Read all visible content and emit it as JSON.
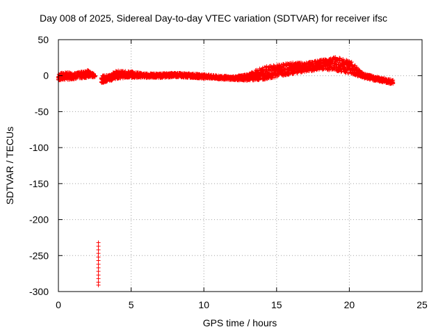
{
  "chart_data": {
    "type": "scatter",
    "title": "Day 008 of 2025, Sidereal Day-to-day VTEC variation (SDTVAR) for receiver ifsc",
    "xlabel": "GPS time / hours",
    "ylabel": "SDTVAR / TECUs",
    "xlim": [
      0,
      25
    ],
    "ylim": [
      -300,
      50
    ],
    "xticks": [
      0,
      5,
      10,
      15,
      20,
      25
    ],
    "yticks": [
      -300,
      -250,
      -200,
      -150,
      -100,
      -50,
      0,
      50
    ],
    "grid": true,
    "marker": "+",
    "color": "#ff0000",
    "series": [
      {
        "band_min": [
          [
            0.0,
            -7
          ],
          [
            0.5,
            -6
          ],
          [
            1.0,
            -5
          ],
          [
            1.5,
            -4
          ],
          [
            2.0,
            -3
          ],
          [
            2.5,
            -2
          ],
          [
            3.0,
            -10
          ],
          [
            3.5,
            -8
          ],
          [
            4.0,
            -4
          ],
          [
            5.0,
            -3
          ],
          [
            6.0,
            -3
          ],
          [
            7.0,
            -3
          ],
          [
            8.0,
            -2
          ],
          [
            9.0,
            -3
          ],
          [
            10.0,
            -4
          ],
          [
            11.0,
            -5
          ],
          [
            12.0,
            -6
          ],
          [
            13.0,
            -7
          ],
          [
            14.0,
            -6
          ],
          [
            15.0,
            -2
          ],
          [
            16.0,
            2
          ],
          [
            17.0,
            5
          ],
          [
            18.0,
            8
          ],
          [
            19.0,
            7
          ],
          [
            20.0,
            3
          ],
          [
            21.0,
            -4
          ],
          [
            22.0,
            -8
          ],
          [
            23.0,
            -12
          ]
        ],
        "band_max": [
          [
            0.0,
            3
          ],
          [
            0.5,
            5
          ],
          [
            1.0,
            4
          ],
          [
            1.5,
            5
          ],
          [
            2.0,
            8
          ],
          [
            2.5,
            2
          ],
          [
            3.0,
            0
          ],
          [
            3.5,
            2
          ],
          [
            4.0,
            7
          ],
          [
            5.0,
            6
          ],
          [
            6.0,
            3
          ],
          [
            7.0,
            3
          ],
          [
            8.0,
            4
          ],
          [
            9.0,
            3
          ],
          [
            10.0,
            2
          ],
          [
            11.0,
            0
          ],
          [
            12.0,
            -1
          ],
          [
            13.0,
            2
          ],
          [
            14.0,
            12
          ],
          [
            15.0,
            15
          ],
          [
            16.0,
            18
          ],
          [
            17.0,
            18
          ],
          [
            18.0,
            22
          ],
          [
            19.0,
            26
          ],
          [
            20.0,
            22
          ],
          [
            21.0,
            3
          ],
          [
            22.0,
            -2
          ],
          [
            23.0,
            -6
          ]
        ],
        "outliers": [
          [
            2.75,
            -232
          ],
          [
            2.75,
            -237
          ],
          [
            2.75,
            -242
          ],
          [
            2.75,
            -247
          ],
          [
            2.75,
            -252
          ],
          [
            2.75,
            -257
          ],
          [
            2.75,
            -262
          ],
          [
            2.75,
            -267
          ],
          [
            2.75,
            -272
          ],
          [
            2.75,
            -277
          ],
          [
            2.75,
            -282
          ],
          [
            2.75,
            -287
          ],
          [
            2.75,
            -291
          ]
        ]
      }
    ]
  }
}
